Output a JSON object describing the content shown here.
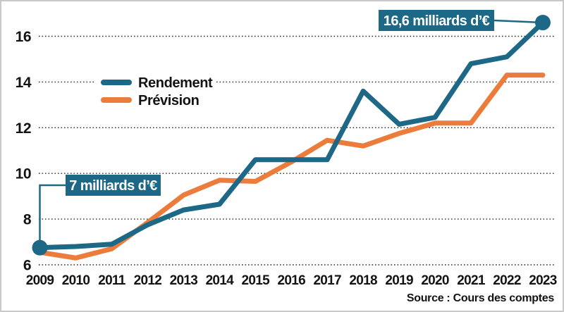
{
  "figure": {
    "source_label": "Source : Cours des comptes",
    "annotation_start": "7 milliards d’€",
    "annotation_end": "16,6 milliards d’€"
  },
  "chart_data": {
    "type": "line",
    "title": "",
    "xlabel": "",
    "ylabel": "",
    "x": [
      2009,
      2010,
      2011,
      2012,
      2013,
      2014,
      2015,
      2016,
      2017,
      2018,
      2019,
      2020,
      2021,
      2022,
      2023
    ],
    "series": [
      {
        "name": "Rendement",
        "color": "#1e6887",
        "values": [
          6.75,
          6.8,
          6.9,
          7.75,
          8.4,
          8.65,
          10.6,
          10.6,
          10.6,
          13.6,
          12.15,
          12.45,
          14.8,
          15.1,
          16.6
        ]
      },
      {
        "name": "Prévision",
        "color": "#ec7c3b",
        "values": [
          6.55,
          6.3,
          6.7,
          7.85,
          9.05,
          9.7,
          9.65,
          10.5,
          11.45,
          11.2,
          11.75,
          12.2,
          12.2,
          14.3,
          14.3
        ]
      }
    ],
    "yticks": [
      6,
      8,
      10,
      12,
      14,
      16
    ],
    "ylim": [
      6,
      17
    ],
    "grid": "horizontal-dotted",
    "legend_position": "inside-top-left",
    "annotations": [
      {
        "text": "7 milliards d’€",
        "x": 2009,
        "y": 6.75
      },
      {
        "text": "16,6 milliards d’€",
        "x": 2023,
        "y": 16.6
      }
    ],
    "source": "Source : Cours des comptes"
  }
}
